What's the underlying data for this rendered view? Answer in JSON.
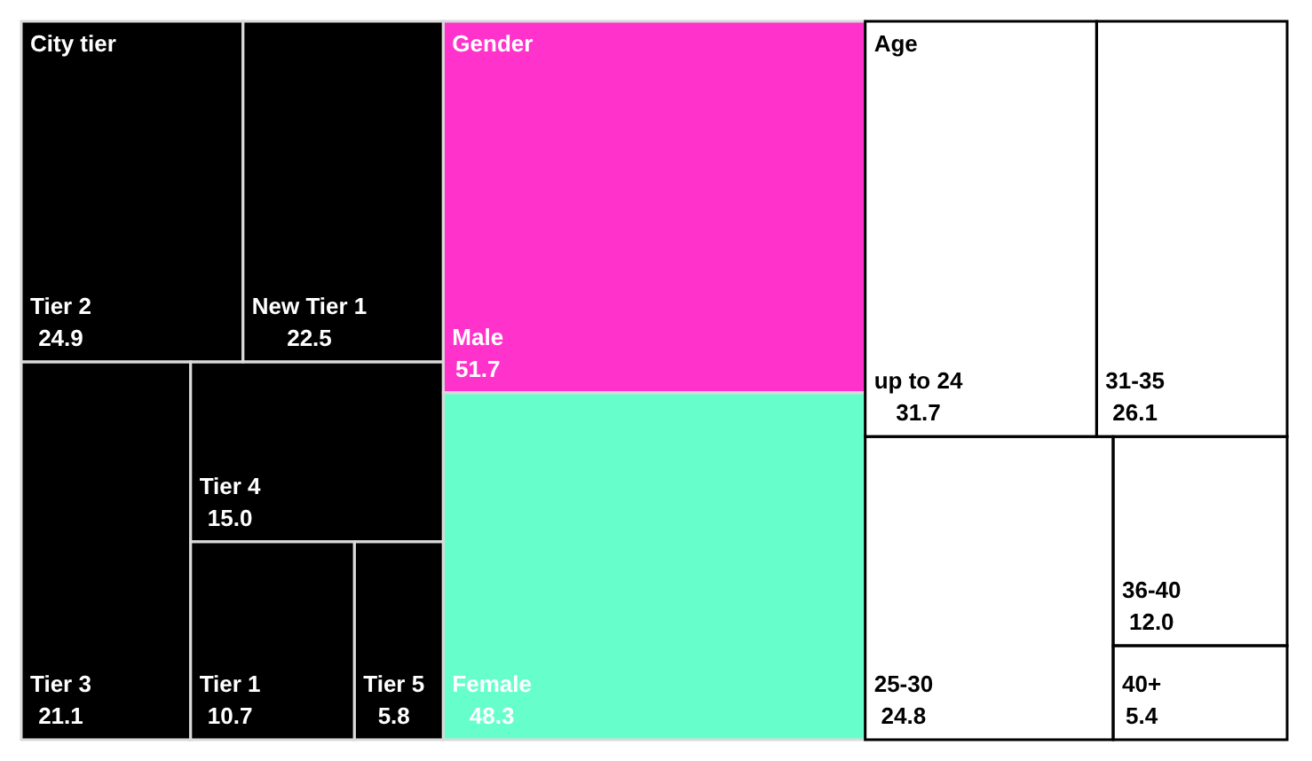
{
  "chart_data": {
    "type": "other",
    "categories": [
      "Tier 2",
      "New Tier 1",
      "Tier 3",
      "Tier 4",
      "Tier 1",
      "Tier 5",
      "Male",
      "Female",
      "up to 24",
      "31-35",
      "25-30",
      "36-40",
      "40+"
    ],
    "series": [
      {
        "name": "City tier",
        "color": "#000000",
        "values": [
          24.9,
          22.5,
          21.1,
          15.0,
          10.7,
          5.8,
          null,
          null,
          null,
          null,
          null,
          null,
          null
        ],
        "value_labels": [
          "24.9",
          "22.5",
          "21.1",
          "15.0",
          "10.7",
          "5.8",
          null,
          null,
          null,
          null,
          null,
          null,
          null
        ]
      },
      {
        "name": "Gender",
        "colors": [
          null,
          null,
          null,
          null,
          null,
          null,
          "#ff33cc",
          "#66ffcc",
          null,
          null,
          null,
          null,
          null
        ],
        "values": [
          null,
          null,
          null,
          null,
          null,
          null,
          51.7,
          48.3,
          null,
          null,
          null,
          null,
          null
        ],
        "value_labels": [
          null,
          null,
          null,
          null,
          null,
          null,
          "51.7",
          "48.3",
          null,
          null,
          null,
          null,
          null
        ]
      },
      {
        "name": "Age",
        "values": [
          null,
          null,
          null,
          null,
          null,
          null,
          null,
          null,
          31.7,
          26.1,
          24.8,
          12.0,
          5.4
        ],
        "value_labels": [
          null,
          null,
          null,
          null,
          null,
          null,
          null,
          null,
          "31.7",
          "26.1",
          "24.8",
          "12.0",
          "5.4"
        ]
      }
    ]
  }
}
